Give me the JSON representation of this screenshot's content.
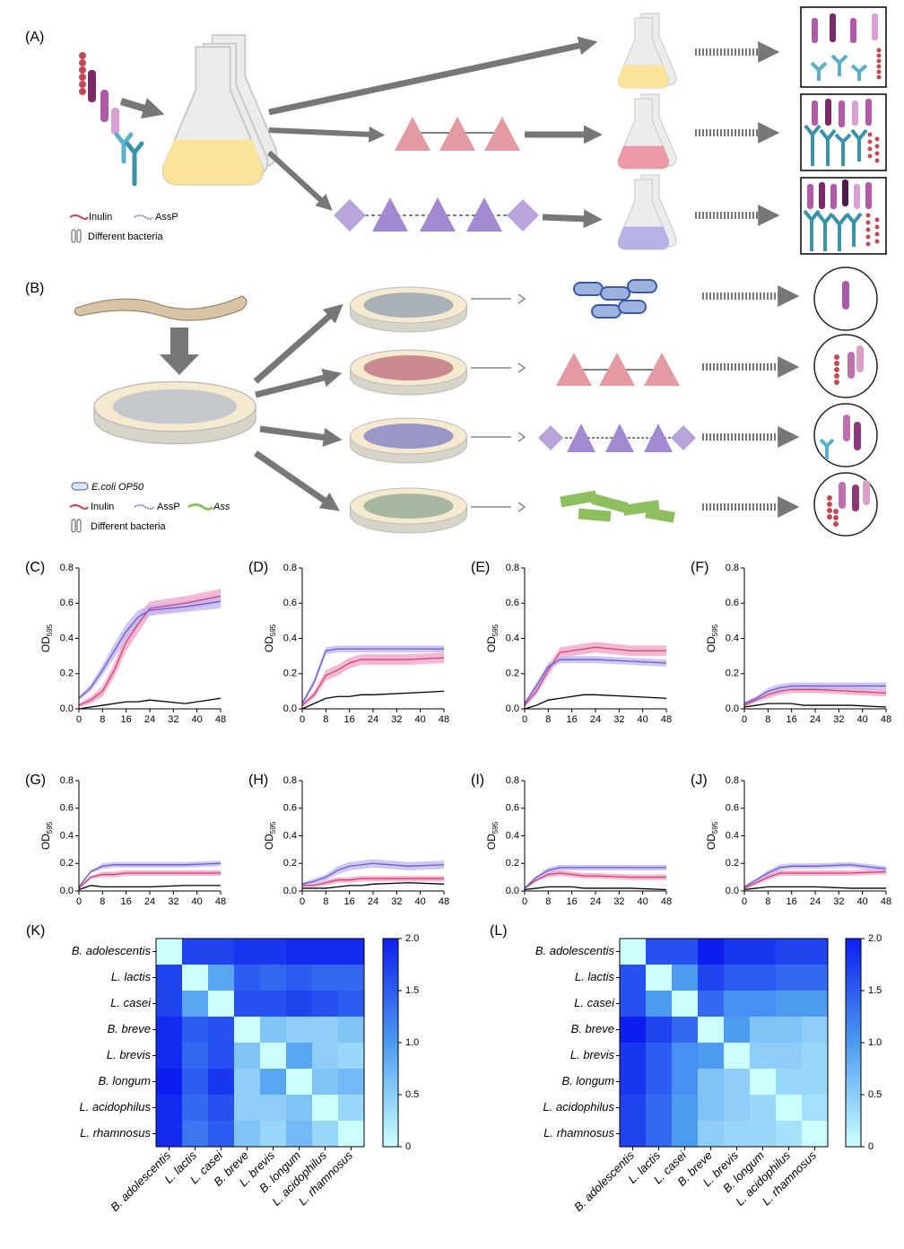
{
  "diagram": {
    "A": {
      "label": "(A)",
      "legend": [
        "Inulin",
        "AssP",
        "Different bacteria"
      ]
    },
    "B": {
      "label": "(B)",
      "legend": [
        "E.coli OP50",
        "Inulin",
        "AssP",
        "Ass",
        "Different bacteria"
      ]
    }
  },
  "chart_data": [
    {
      "type": "line",
      "label": "(C)",
      "ylabel": "OD",
      "ylabel_sub": "595",
      "x": [
        0,
        4,
        8,
        12,
        16,
        20,
        24,
        36,
        48
      ],
      "xlim": [
        0,
        48
      ],
      "xticks": [
        0,
        8,
        16,
        24,
        32,
        40,
        48
      ],
      "ylim": [
        0,
        0.8
      ],
      "yticks": [
        {
          "value": 0,
          "label": "0.0"
        },
        0.2,
        0.4,
        0.6,
        0.8
      ],
      "series": [
        {
          "color": "#000000",
          "values": [
            0,
            0.01,
            0.02,
            0.03,
            0.04,
            0.04,
            0.05,
            0.03,
            0.06
          ]
        },
        {
          "color": "#d63f6e",
          "band": "#f2a6c9",
          "values": [
            0.02,
            0.05,
            0.1,
            0.22,
            0.38,
            0.48,
            0.57,
            0.6,
            0.64
          ],
          "errors": [
            0.01,
            0.02,
            0.03,
            0.04,
            0.05,
            0.05,
            0.04,
            0.04,
            0.04
          ]
        },
        {
          "color": "#6a5acd",
          "band": "#c3b8f0",
          "values": [
            0.06,
            0.12,
            0.22,
            0.33,
            0.44,
            0.52,
            0.56,
            0.58,
            0.61
          ],
          "errors": [
            0.01,
            0.02,
            0.03,
            0.04,
            0.04,
            0.04,
            0.03,
            0.03,
            0.04
          ]
        }
      ]
    },
    {
      "type": "line",
      "label": "(D)",
      "ylabel": "OD",
      "ylabel_sub": "595",
      "x": [
        0,
        4,
        8,
        12,
        16,
        20,
        24,
        36,
        48
      ],
      "xlim": [
        0,
        48
      ],
      "xticks": [
        0,
        8,
        16,
        24,
        32,
        40,
        48
      ],
      "ylim": [
        0,
        0.8
      ],
      "yticks": [
        {
          "value": 0,
          "label": "0.0"
        },
        0.2,
        0.4,
        0.6,
        0.8
      ],
      "series": [
        {
          "color": "#000000",
          "values": [
            0,
            0.03,
            0.06,
            0.07,
            0.07,
            0.08,
            0.08,
            0.09,
            0.1
          ]
        },
        {
          "color": "#d63f6e",
          "band": "#f2a6c9",
          "values": [
            0.02,
            0.08,
            0.19,
            0.22,
            0.26,
            0.28,
            0.28,
            0.28,
            0.29
          ],
          "errors": [
            0.01,
            0.02,
            0.03,
            0.03,
            0.03,
            0.03,
            0.03,
            0.03,
            0.03
          ]
        },
        {
          "color": "#6a5acd",
          "band": "#c3b8f0",
          "values": [
            0.03,
            0.15,
            0.33,
            0.34,
            0.34,
            0.34,
            0.34,
            0.34,
            0.34
          ],
          "errors": [
            0.01,
            0.02,
            0.02,
            0.02,
            0.02,
            0.02,
            0.02,
            0.02,
            0.02
          ]
        }
      ]
    },
    {
      "type": "line",
      "label": "(E)",
      "ylabel": "OD",
      "ylabel_sub": "595",
      "x": [
        0,
        4,
        8,
        12,
        16,
        20,
        24,
        36,
        48
      ],
      "xlim": [
        0,
        48
      ],
      "xticks": [
        0,
        8,
        16,
        24,
        32,
        40,
        48
      ],
      "ylim": [
        0,
        0.8
      ],
      "yticks": [
        {
          "value": 0,
          "label": "0.0"
        },
        0.2,
        0.4,
        0.6,
        0.8
      ],
      "series": [
        {
          "color": "#000000",
          "values": [
            0,
            0.02,
            0.05,
            0.06,
            0.07,
            0.08,
            0.08,
            0.07,
            0.06
          ]
        },
        {
          "color": "#d63f6e",
          "band": "#f2a6c9",
          "values": [
            0.02,
            0.1,
            0.22,
            0.32,
            0.33,
            0.34,
            0.35,
            0.33,
            0.33
          ],
          "errors": [
            0.01,
            0.02,
            0.03,
            0.03,
            0.03,
            0.03,
            0.03,
            0.03,
            0.03
          ]
        },
        {
          "color": "#6a5acd",
          "band": "#c3b8f0",
          "values": [
            0.03,
            0.13,
            0.24,
            0.28,
            0.28,
            0.28,
            0.28,
            0.27,
            0.26
          ],
          "errors": [
            0.01,
            0.02,
            0.02,
            0.02,
            0.02,
            0.02,
            0.02,
            0.02,
            0.02
          ]
        }
      ]
    },
    {
      "type": "line",
      "label": "(F)",
      "ylabel": "OD",
      "ylabel_sub": "595",
      "x": [
        0,
        4,
        8,
        12,
        16,
        20,
        24,
        36,
        48
      ],
      "xlim": [
        0,
        48
      ],
      "xticks": [
        0,
        8,
        16,
        24,
        32,
        40,
        48
      ],
      "ylim": [
        0,
        0.8
      ],
      "yticks": [
        {
          "value": 0,
          "label": "0.0"
        },
        0.2,
        0.4,
        0.6,
        0.8
      ],
      "series": [
        {
          "color": "#000000",
          "values": [
            0.01,
            0.02,
            0.03,
            0.03,
            0.03,
            0.02,
            0.02,
            0.02,
            0.01
          ]
        },
        {
          "color": "#d63f6e",
          "band": "#f2a6c9",
          "values": [
            0.02,
            0.05,
            0.08,
            0.1,
            0.11,
            0.11,
            0.11,
            0.1,
            0.09
          ],
          "errors": [
            0.01,
            0.01,
            0.02,
            0.02,
            0.02,
            0.02,
            0.02,
            0.02,
            0.02
          ]
        },
        {
          "color": "#6a5acd",
          "band": "#c3b8f0",
          "values": [
            0.03,
            0.06,
            0.1,
            0.12,
            0.13,
            0.13,
            0.13,
            0.13,
            0.13
          ],
          "errors": [
            0.01,
            0.01,
            0.02,
            0.02,
            0.02,
            0.02,
            0.02,
            0.02,
            0.02
          ]
        }
      ]
    },
    {
      "type": "line",
      "label": "(G)",
      "ylabel": "OD",
      "ylabel_sub": "595",
      "x": [
        0,
        4,
        8,
        12,
        16,
        20,
        24,
        36,
        48
      ],
      "xlim": [
        0,
        48
      ],
      "xticks": [
        0,
        8,
        16,
        24,
        32,
        40,
        48
      ],
      "ylim": [
        0,
        0.8
      ],
      "yticks": [
        {
          "value": 0,
          "label": "0.0"
        },
        0.2,
        0.4,
        0.6,
        0.8
      ],
      "series": [
        {
          "color": "#000000",
          "values": [
            0.01,
            0.04,
            0.03,
            0.03,
            0.03,
            0.03,
            0.03,
            0.04,
            0.04
          ]
        },
        {
          "color": "#d63f6e",
          "band": "#f2a6c9",
          "values": [
            0.02,
            0.1,
            0.12,
            0.12,
            0.13,
            0.13,
            0.13,
            0.13,
            0.13
          ],
          "errors": [
            0.01,
            0.01,
            0.02,
            0.02,
            0.02,
            0.02,
            0.02,
            0.02,
            0.02
          ]
        },
        {
          "color": "#6a5acd",
          "band": "#c3b8f0",
          "values": [
            0.03,
            0.14,
            0.18,
            0.19,
            0.19,
            0.19,
            0.19,
            0.19,
            0.2
          ],
          "errors": [
            0.01,
            0.01,
            0.02,
            0.02,
            0.02,
            0.02,
            0.02,
            0.02,
            0.02
          ]
        }
      ]
    },
    {
      "type": "line",
      "label": "(H)",
      "ylabel": "OD",
      "ylabel_sub": "595",
      "x": [
        0,
        4,
        8,
        12,
        16,
        20,
        24,
        36,
        48
      ],
      "xlim": [
        0,
        48
      ],
      "xticks": [
        0,
        8,
        16,
        24,
        32,
        40,
        48
      ],
      "ylim": [
        0,
        0.8
      ],
      "yticks": [
        {
          "value": 0,
          "label": "0.0"
        },
        0.2,
        0.4,
        0.6,
        0.8
      ],
      "series": [
        {
          "color": "#000000",
          "values": [
            0.02,
            0.02,
            0.02,
            0.03,
            0.04,
            0.04,
            0.05,
            0.06,
            0.05
          ]
        },
        {
          "color": "#d63f6e",
          "band": "#f2a6c9",
          "values": [
            0.04,
            0.04,
            0.06,
            0.08,
            0.08,
            0.09,
            0.09,
            0.09,
            0.09
          ],
          "errors": [
            0.01,
            0.01,
            0.02,
            0.02,
            0.02,
            0.02,
            0.02,
            0.02,
            0.02
          ]
        },
        {
          "color": "#6a5acd",
          "band": "#c3b8f0",
          "values": [
            0.05,
            0.07,
            0.1,
            0.15,
            0.18,
            0.19,
            0.2,
            0.18,
            0.19
          ],
          "errors": [
            0.01,
            0.02,
            0.02,
            0.03,
            0.03,
            0.03,
            0.03,
            0.03,
            0.03
          ]
        }
      ]
    },
    {
      "type": "line",
      "label": "(I)",
      "ylabel": "OD",
      "ylabel_sub": "595",
      "x": [
        0,
        4,
        8,
        12,
        16,
        20,
        24,
        36,
        48
      ],
      "xlim": [
        0,
        48
      ],
      "xticks": [
        0,
        8,
        16,
        24,
        32,
        40,
        48
      ],
      "ylim": [
        0,
        0.8
      ],
      "yticks": [
        {
          "value": 0,
          "label": "0.0"
        },
        0.2,
        0.4,
        0.6,
        0.8
      ],
      "series": [
        {
          "color": "#000000",
          "values": [
            0.01,
            0.02,
            0.03,
            0.03,
            0.03,
            0.02,
            0.02,
            0.02,
            0.01
          ]
        },
        {
          "color": "#d63f6e",
          "band": "#f2a6c9",
          "values": [
            0.02,
            0.08,
            0.12,
            0.13,
            0.12,
            0.11,
            0.11,
            0.1,
            0.1
          ],
          "errors": [
            0.01,
            0.01,
            0.02,
            0.02,
            0.02,
            0.02,
            0.02,
            0.02,
            0.02
          ]
        },
        {
          "color": "#6a5acd",
          "band": "#c3b8f0",
          "values": [
            0.02,
            0.1,
            0.15,
            0.17,
            0.17,
            0.17,
            0.17,
            0.17,
            0.17
          ],
          "errors": [
            0.01,
            0.01,
            0.02,
            0.02,
            0.02,
            0.02,
            0.02,
            0.02,
            0.02
          ]
        }
      ]
    },
    {
      "type": "line",
      "label": "(J)",
      "ylabel": "OD",
      "ylabel_sub": "595",
      "x": [
        0,
        4,
        8,
        12,
        16,
        20,
        24,
        36,
        48
      ],
      "xlim": [
        0,
        48
      ],
      "xticks": [
        0,
        8,
        16,
        24,
        32,
        40,
        48
      ],
      "ylim": [
        0,
        0.8
      ],
      "yticks": [
        {
          "value": 0,
          "label": "0.0"
        },
        0.2,
        0.4,
        0.6,
        0.8
      ],
      "series": [
        {
          "color": "#000000",
          "values": [
            0.01,
            0.02,
            0.03,
            0.03,
            0.03,
            0.03,
            0.03,
            0.02,
            0.02
          ]
        },
        {
          "color": "#d63f6e",
          "band": "#f2a6c9",
          "values": [
            0.02,
            0.06,
            0.1,
            0.13,
            0.13,
            0.13,
            0.13,
            0.13,
            0.14
          ],
          "errors": [
            0.01,
            0.01,
            0.02,
            0.02,
            0.02,
            0.02,
            0.02,
            0.02,
            0.02
          ]
        },
        {
          "color": "#6a5acd",
          "band": "#c3b8f0",
          "values": [
            0.03,
            0.08,
            0.13,
            0.17,
            0.18,
            0.18,
            0.18,
            0.19,
            0.16
          ],
          "errors": [
            0.01,
            0.01,
            0.02,
            0.02,
            0.02,
            0.02,
            0.02,
            0.02,
            0.02
          ]
        }
      ]
    },
    {
      "type": "heatmap",
      "label": "(K)",
      "categories": [
        "B. adolescentis",
        "L. lactis",
        "L. casei",
        "B. breve",
        "L. brevis",
        "B. longum",
        "L. acidophilus",
        "L. rhamnosus"
      ],
      "zlim": [
        0,
        2
      ],
      "zticks": [
        0,
        0.5,
        {
          "value": 1,
          "label": "1.0"
        },
        1.5,
        {
          "value": 2,
          "label": "2.0"
        }
      ],
      "colors": [
        "#ccffff",
        "#4d9bf0",
        "#0d1ef0"
      ],
      "values": [
        [
          0,
          1.7,
          1.7,
          1.8,
          1.8,
          1.9,
          1.9,
          1.9
        ],
        [
          1.7,
          0,
          0.9,
          1.5,
          1.4,
          1.5,
          1.4,
          1.4
        ],
        [
          1.7,
          0.9,
          0,
          1.6,
          1.6,
          1.7,
          1.6,
          1.5
        ],
        [
          1.9,
          1.5,
          1.6,
          0,
          0.6,
          0.5,
          0.5,
          0.6
        ],
        [
          1.9,
          1.4,
          1.6,
          0.6,
          0,
          0.9,
          0.5,
          0.4
        ],
        [
          2.0,
          1.5,
          1.8,
          0.5,
          0.9,
          0,
          0.6,
          0.7
        ],
        [
          1.9,
          1.4,
          1.6,
          0.5,
          0.5,
          0.6,
          0,
          0.4
        ],
        [
          1.9,
          1.3,
          1.5,
          0.6,
          0.4,
          0.7,
          0.4,
          0
        ]
      ]
    },
    {
      "type": "heatmap",
      "label": "(L)",
      "categories": [
        "B. adolescentis",
        "L. lactis",
        "L. casei",
        "B. breve",
        "L. brevis",
        "B. longum",
        "L. acidophilus",
        "L. rhamnosus"
      ],
      "zlim": [
        0,
        2
      ],
      "zticks": [
        0,
        0.5,
        {
          "value": 1,
          "label": "1.0"
        },
        1.5,
        {
          "value": 2,
          "label": "2.0"
        }
      ],
      "colors": [
        "#ccffff",
        "#4d9bf0",
        "#0d1ef0"
      ],
      "values": [
        [
          0,
          1.6,
          1.6,
          2.0,
          1.8,
          1.8,
          1.7,
          1.7
        ],
        [
          1.6,
          0,
          1.0,
          1.7,
          1.5,
          1.5,
          1.4,
          1.4
        ],
        [
          1.6,
          1.0,
          0,
          1.4,
          1.1,
          1.1,
          1.0,
          1.0
        ],
        [
          2.0,
          1.7,
          1.4,
          0,
          1.0,
          0.6,
          0.6,
          0.5
        ],
        [
          1.8,
          1.5,
          1.1,
          1.0,
          0,
          0.5,
          0.5,
          0.4
        ],
        [
          1.8,
          1.5,
          1.1,
          0.6,
          0.5,
          0,
          0.4,
          0.4
        ],
        [
          1.7,
          1.4,
          1.0,
          0.6,
          0.5,
          0.4,
          0,
          0.3
        ],
        [
          1.7,
          1.4,
          1.0,
          0.5,
          0.4,
          0.4,
          0.3,
          0
        ]
      ]
    }
  ]
}
